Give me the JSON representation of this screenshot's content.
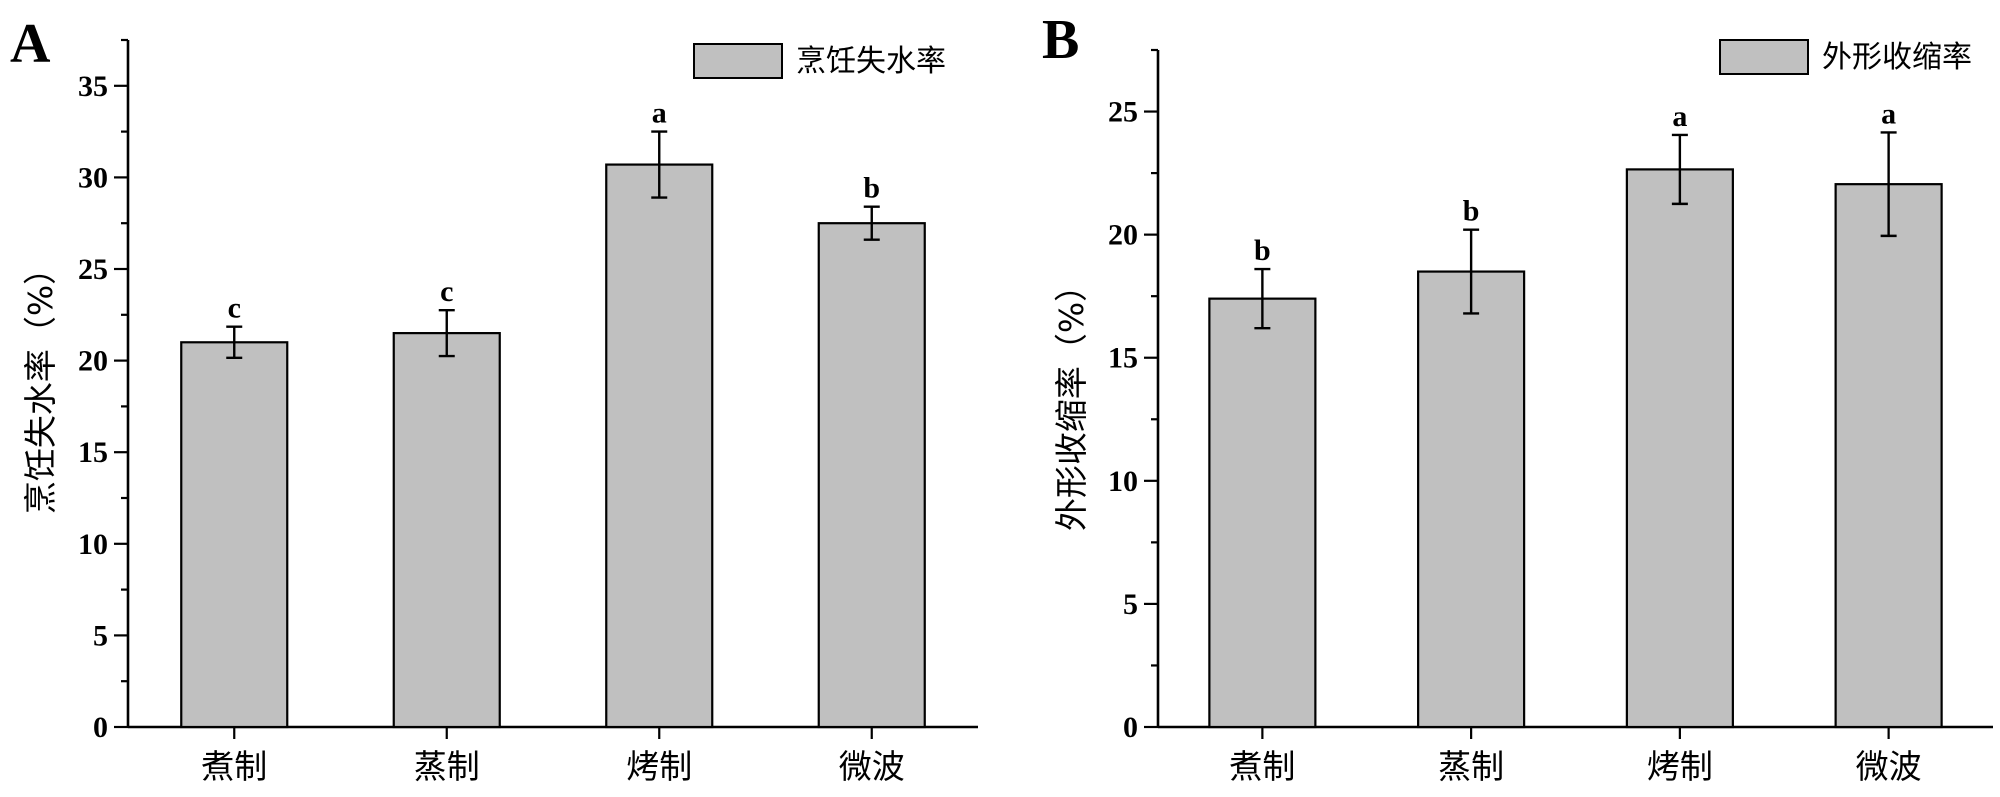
{
  "chart_data": [
    {
      "panel": "A",
      "type": "bar",
      "categories": [
        "煮制",
        "蒸制",
        "烤制",
        "微波"
      ],
      "series": [
        {
          "name": "烹饪失水率",
          "values": [
            21.0,
            21.5,
            30.7,
            27.5
          ],
          "errors": [
            0.85,
            1.25,
            1.8,
            0.9
          ],
          "labels": [
            "c",
            "c",
            "a",
            "b"
          ]
        }
      ],
      "ylabel": "烹饪失水率（%）",
      "ylim": [
        0,
        37.5
      ],
      "yticks": [
        0,
        5,
        10,
        15,
        20,
        25,
        30,
        35
      ],
      "legend": "top-right",
      "grid": false,
      "bar_color": "#c0c0c0"
    },
    {
      "panel": "B",
      "type": "bar",
      "categories": [
        "煮制",
        "蒸制",
        "烤制",
        "微波"
      ],
      "series": [
        {
          "name": "外形收缩率",
          "values": [
            17.4,
            18.5,
            22.65,
            22.05
          ],
          "errors": [
            1.2,
            1.7,
            1.4,
            2.1
          ],
          "labels": [
            "b",
            "b",
            "a",
            "a"
          ]
        }
      ],
      "ylabel": "外形收缩率（%）",
      "ylim": [
        0,
        27.5
      ],
      "yticks": [
        0,
        5,
        10,
        15,
        20,
        25
      ],
      "legend": "top-right",
      "grid": false,
      "bar_color": "#c0c0c0"
    }
  ]
}
